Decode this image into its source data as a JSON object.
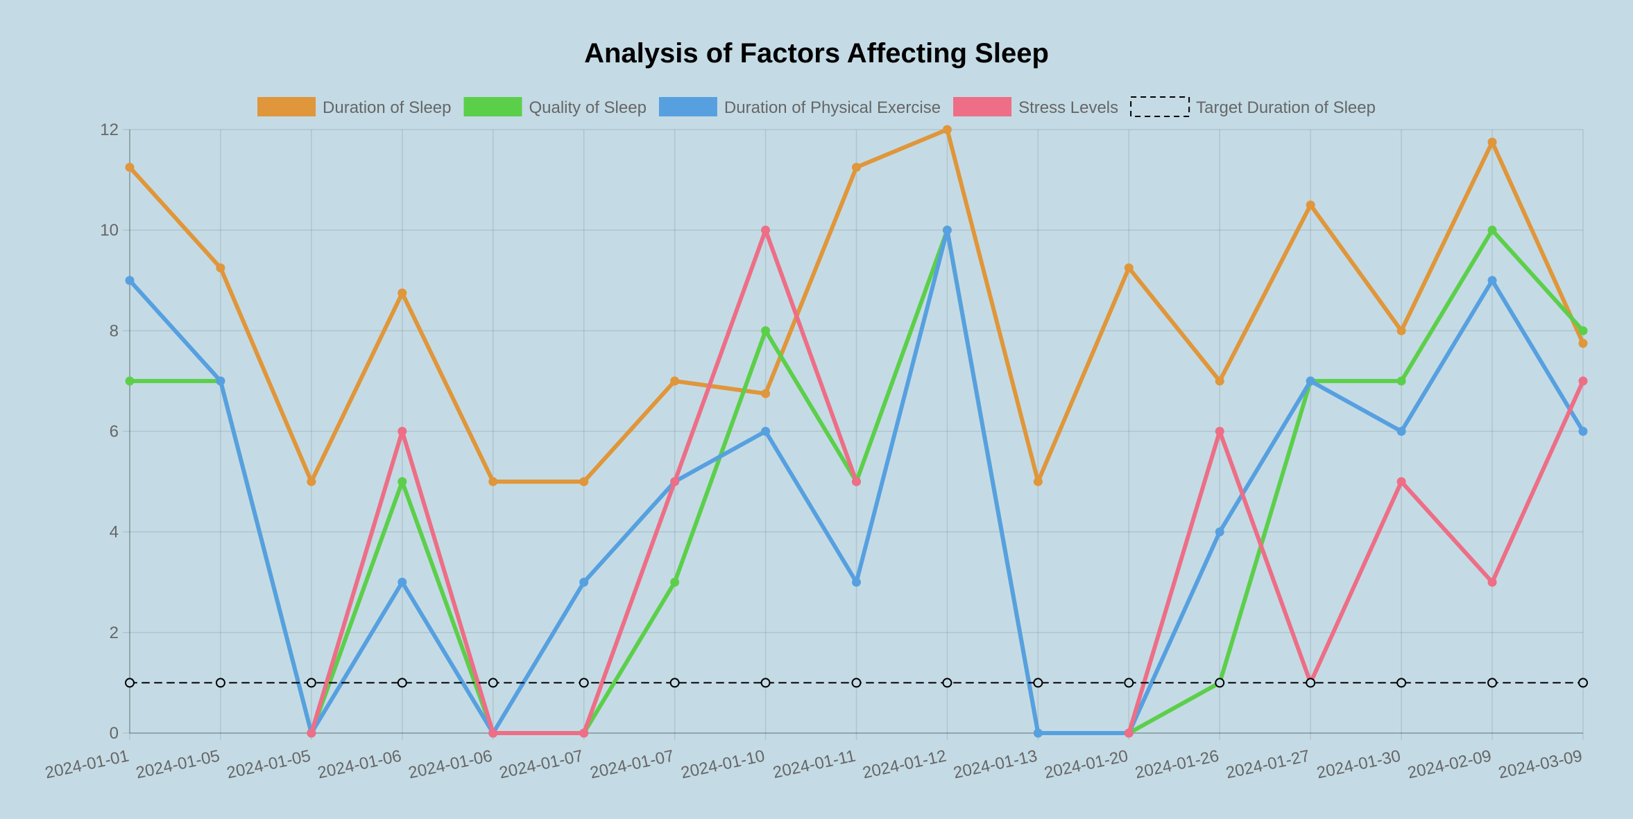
{
  "chart_data": {
    "type": "line",
    "title": "Analysis of Factors Affecting Sleep",
    "categories": [
      "2024-01-01",
      "2024-01-05",
      "2024-01-05",
      "2024-01-06",
      "2024-01-06",
      "2024-01-07",
      "2024-01-07",
      "2024-01-10",
      "2024-01-11",
      "2024-01-12",
      "2024-01-13",
      "2024-01-20",
      "2024-01-26",
      "2024-01-27",
      "2024-01-30",
      "2024-02-09",
      "2024-03-09"
    ],
    "y_ticks": [
      "0",
      "2",
      "4",
      "6",
      "8",
      "10",
      "12"
    ],
    "ylim": [
      0,
      12
    ],
    "grid": true,
    "legend_position": "top",
    "series": [
      {
        "name": "Duration of Sleep",
        "color": "#e0963a",
        "style": "solid",
        "values": [
          11.25,
          9.25,
          5,
          8.75,
          5,
          5,
          7,
          6.75,
          11.25,
          12,
          5,
          9.25,
          7,
          10.5,
          8,
          11.75,
          7.75
        ]
      },
      {
        "name": "Quality of Sleep",
        "color": "#5ccf4a",
        "style": "solid",
        "values": [
          7,
          7,
          0,
          5,
          0,
          0,
          3,
          8,
          5,
          10,
          0,
          0,
          1,
          7,
          7,
          10,
          8
        ]
      },
      {
        "name": "Duration of Physical Exercise",
        "color": "#57a0e0",
        "style": "solid",
        "values": [
          9,
          7,
          0,
          3,
          0,
          3,
          5,
          6,
          3,
          10,
          0,
          0,
          4,
          7,
          6,
          9,
          6
        ]
      },
      {
        "name": "Stress Levels",
        "color": "#ed6e86",
        "style": "solid",
        "values": [
          null,
          null,
          0,
          6,
          0,
          0,
          5,
          10,
          5,
          null,
          null,
          0,
          6,
          1,
          5,
          3,
          7
        ]
      },
      {
        "name": "Target Duration of Sleep",
        "color": "#000000",
        "style": "dashed",
        "values": [
          1,
          1,
          1,
          1,
          1,
          1,
          1,
          1,
          1,
          1,
          1,
          1,
          1,
          1,
          1,
          1,
          1
        ]
      }
    ]
  }
}
